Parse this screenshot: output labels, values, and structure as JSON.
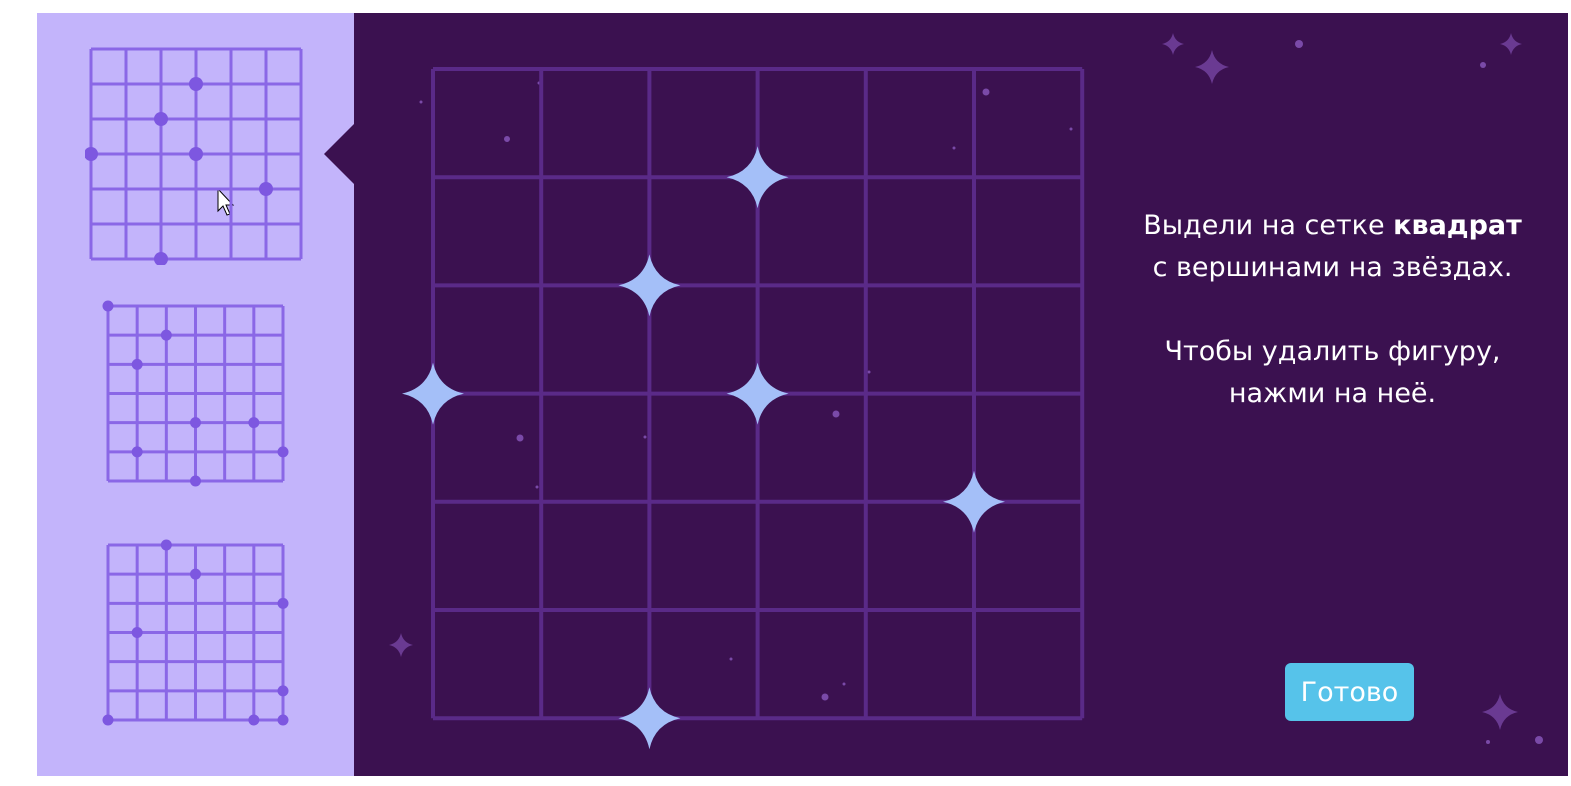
{
  "instructions": {
    "line1_prefix": "Выдели на сетке ",
    "line1_bold": "квадрат",
    "line2": "с вершинами на звёздах.",
    "line3": "Чтобы удалить фигуру,",
    "line4": "нажми на неё."
  },
  "done_button": {
    "label": "Готово"
  },
  "colors": {
    "panel": "#c3b4fb",
    "background": "#3b1150",
    "grid": "#5a2a88",
    "star": "#a4bff8",
    "thumb_grid": "#8a67e6",
    "thumb_dot": "#7d57e0",
    "button": "#56c3ea"
  },
  "board": {
    "cols": 6,
    "rows": 6,
    "stars": [
      [
        3,
        1
      ],
      [
        2,
        2
      ],
      [
        0,
        3
      ],
      [
        3,
        3
      ],
      [
        5,
        4
      ],
      [
        2,
        6
      ]
    ]
  },
  "thumbnails": [
    {
      "selected": true,
      "cols": 6,
      "rows": 6,
      "dots": [
        [
          3,
          1
        ],
        [
          2,
          2
        ],
        [
          0,
          3
        ],
        [
          3,
          3
        ],
        [
          5,
          4
        ],
        [
          2,
          6
        ]
      ]
    },
    {
      "selected": false,
      "cols": 6,
      "rows": 6,
      "dots": [
        [
          0,
          0
        ],
        [
          2,
          1
        ],
        [
          1,
          2
        ],
        [
          3,
          4
        ],
        [
          5,
          4
        ],
        [
          1,
          5
        ],
        [
          6,
          5
        ],
        [
          3,
          6
        ]
      ]
    },
    {
      "selected": false,
      "cols": 6,
      "rows": 6,
      "dots": [
        [
          2,
          0
        ],
        [
          3,
          1
        ],
        [
          6,
          2
        ],
        [
          1,
          3
        ],
        [
          6,
          5
        ],
        [
          0,
          6
        ],
        [
          5,
          6
        ],
        [
          6,
          6
        ]
      ]
    }
  ]
}
